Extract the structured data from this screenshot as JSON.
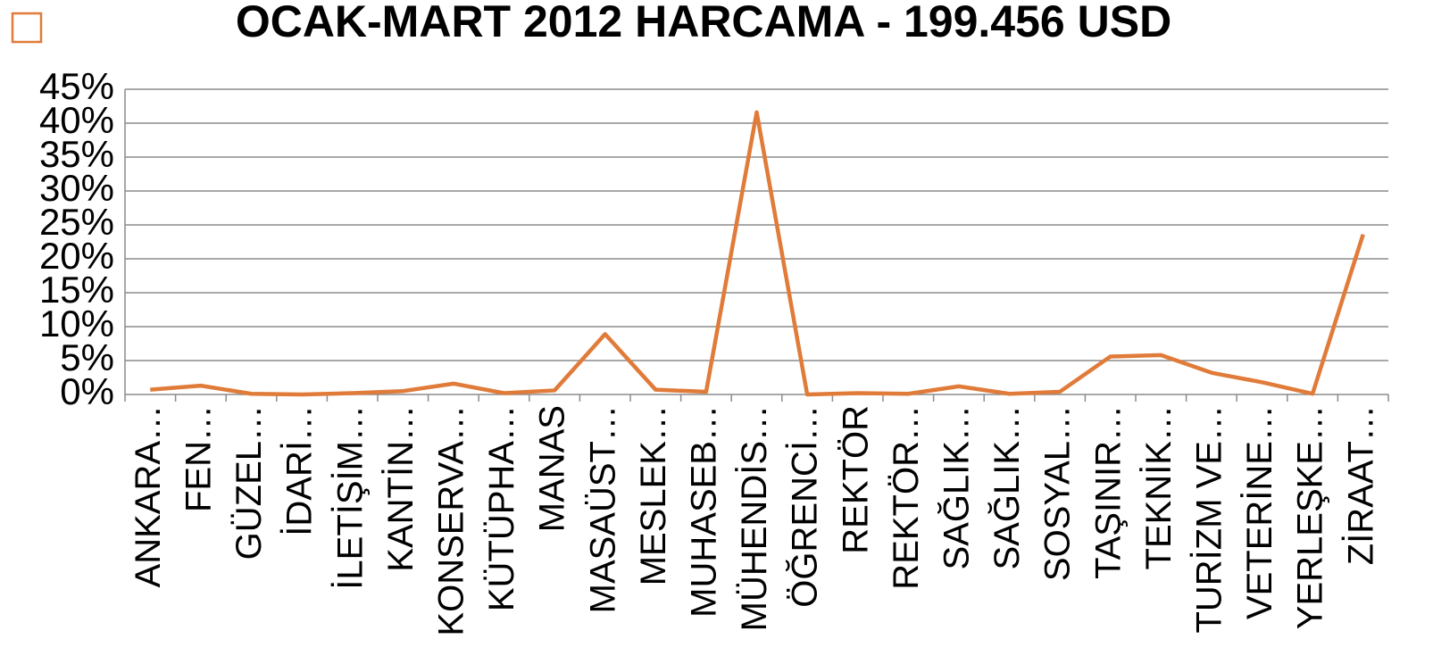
{
  "chart_data": {
    "type": "line",
    "title": "OCAK-MART 2012 HARCAMA - 199.456 USD",
    "categories": [
      "ANKARA…",
      "FEN…",
      "GÜZEL…",
      "İDARİ…",
      "İLETİŞİM…",
      "KANTİN…",
      "KONSERVA…",
      "KÜTÜPHA…",
      "MANAS",
      "MASAÜST…",
      "MESLEK…",
      "MUHASEB…",
      "MÜHENDİS…",
      "ÖĞRENCİ…",
      "REKTÖR",
      "REKTÖR…",
      "SAĞLIK…",
      "SAĞLIK…",
      "SOSYAL…",
      "TAŞINIR…",
      "TEKNİK…",
      "TURİZM VE…",
      "VETERİNE…",
      "YERLEŞKE…",
      "ZİRAAT…"
    ],
    "values": [
      0.7,
      1.3,
      0.1,
      0,
      0.2,
      0.5,
      1.6,
      0.2,
      0.6,
      8.9,
      0.7,
      0.4,
      41.6,
      0,
      0.2,
      0.1,
      1.2,
      0.1,
      0.4,
      5.6,
      5.8,
      3.2,
      1.8,
      0.1,
      23.6
    ],
    "color": "#e07b39",
    "ylim": [
      0,
      45
    ],
    "yticks": [
      {
        "value": 0,
        "label": "0%"
      },
      {
        "value": 5,
        "label": "5%"
      },
      {
        "value": 10,
        "label": "10%"
      },
      {
        "value": 15,
        "label": "15%"
      },
      {
        "value": 20,
        "label": "20%"
      },
      {
        "value": 25,
        "label": "25%"
      },
      {
        "value": 30,
        "label": "30%"
      },
      {
        "value": 35,
        "label": "35%"
      },
      {
        "value": 40,
        "label": "40%"
      },
      {
        "value": 45,
        "label": "45%"
      }
    ],
    "grid": true
  }
}
